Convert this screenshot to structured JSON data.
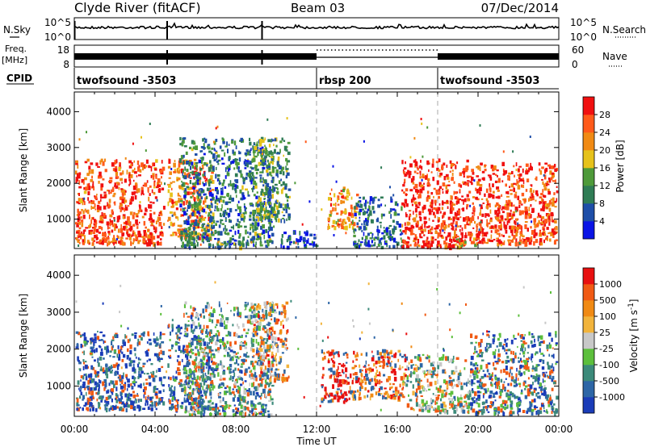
{
  "header": {
    "radar": "Clyde River (fitACF)",
    "beam": "Beam 03",
    "date": "07/Dec/2014"
  },
  "top_panels": {
    "nsky_label": "N.Sky",
    "nsky_ticks": [
      "10^5",
      "10^0"
    ],
    "nsearch_label": "N.Search",
    "freq_label_line1": "Freq.",
    "freq_label_line2": "[MHz]",
    "freq_ticks": [
      "18",
      "8"
    ],
    "nave_ticks": [
      "60",
      "0"
    ],
    "nave_label": "Nave",
    "cpid_label": "CPID"
  },
  "cpid_segments": [
    {
      "name": "twofsound -3503",
      "start_h": 0
    },
    {
      "name": "rbsp 200",
      "start_h": 12
    },
    {
      "name": "twofsound -3503",
      "start_h": 18
    }
  ],
  "x_axis": {
    "label": "Time UT",
    "ticks": [
      "00:00",
      "04:00",
      "08:00",
      "12:00",
      "16:00",
      "20:00",
      "00:00"
    ],
    "range_h": [
      0,
      24
    ]
  },
  "chart_data": [
    {
      "type": "heatmap",
      "name": "power",
      "ylabel": "Slant Range [km]",
      "yticks": [
        1000,
        2000,
        3000,
        4000
      ],
      "ylim": [
        180,
        4550
      ],
      "xlim": [
        0,
        24
      ],
      "colorbar_label": "Power [dB]",
      "colorbar_ticks": [
        "4",
        "8",
        "12",
        "16",
        "20",
        "24",
        "28"
      ],
      "colorbar_colors": [
        "#0a14e6",
        "#1e4ea8",
        "#2f7c55",
        "#4e9a3a",
        "#e6c21b",
        "#f08a14",
        "#ff5a1a",
        "#f01010"
      ],
      "blobs": [
        {
          "x0": 0.0,
          "x1": 4.4,
          "y0": 350,
          "y1": 2700,
          "level": 0.84
        },
        {
          "x0": 4.6,
          "x1": 6.8,
          "y0": 500,
          "y1": 2700,
          "level": 0.74
        },
        {
          "x0": 5.2,
          "x1": 9.8,
          "y0": 250,
          "y1": 3300,
          "level": 0.3
        },
        {
          "x0": 8.8,
          "x1": 10.6,
          "y0": 1000,
          "y1": 3300,
          "level": 0.38
        },
        {
          "x0": 10.2,
          "x1": 12.0,
          "y0": 250,
          "y1": 700,
          "level": 0.14
        },
        {
          "x0": 12.5,
          "x1": 14.0,
          "y0": 800,
          "y1": 1950,
          "level": 0.7
        },
        {
          "x0": 13.8,
          "x1": 16.2,
          "y0": 250,
          "y1": 1650,
          "level": 0.25
        },
        {
          "x0": 16.2,
          "x1": 19.6,
          "y0": 250,
          "y1": 2700,
          "level": 0.92
        },
        {
          "x0": 18.8,
          "x1": 20.0,
          "y0": 200,
          "y1": 500,
          "level": 0.45
        },
        {
          "x0": 19.6,
          "x1": 24.0,
          "y0": 350,
          "y1": 2600,
          "level": 0.86
        }
      ]
    },
    {
      "type": "heatmap",
      "name": "velocity",
      "ylabel": "Slant Range [km]",
      "yticks": [
        1000,
        2000,
        3000,
        4000
      ],
      "ylim": [
        180,
        4550
      ],
      "xlim": [
        0,
        24
      ],
      "colorbar_label": "Velocity [m s",
      "colorbar_label_sup": "-1",
      "colorbar_label_end": "]",
      "colorbar_ticks": [
        "1000",
        "500",
        "100",
        "25",
        "-25",
        "-100",
        "-500",
        "-1000"
      ],
      "colorbar_colors": [
        "#1a3cb8",
        "#2d66a6",
        "#3c8a7a",
        "#5cbf3c",
        "#c8c8c8",
        "#f2b43c",
        "#f08a14",
        "#f05a14",
        "#e81010"
      ],
      "blobs": [
        {
          "x0": 0.0,
          "x1": 4.4,
          "y0": 400,
          "y1": 2500,
          "level": 0.12
        },
        {
          "x0": 4.6,
          "x1": 6.8,
          "y0": 400,
          "y1": 2700,
          "level": 0.16
        },
        {
          "x0": 5.4,
          "x1": 9.8,
          "y0": 250,
          "y1": 3300,
          "level": 0.3
        },
        {
          "x0": 8.8,
          "x1": 10.6,
          "y0": 1200,
          "y1": 3300,
          "level": 0.72
        },
        {
          "x0": 12.2,
          "x1": 13.6,
          "y0": 600,
          "y1": 2000,
          "level": 0.95
        },
        {
          "x0": 13.6,
          "x1": 16.4,
          "y0": 700,
          "y1": 2000,
          "level": 0.82
        },
        {
          "x0": 16.4,
          "x1": 19.6,
          "y0": 350,
          "y1": 1900,
          "level": 0.38
        },
        {
          "x0": 19.6,
          "x1": 24.0,
          "y0": 300,
          "y1": 2500,
          "level": 0.2
        }
      ]
    }
  ]
}
